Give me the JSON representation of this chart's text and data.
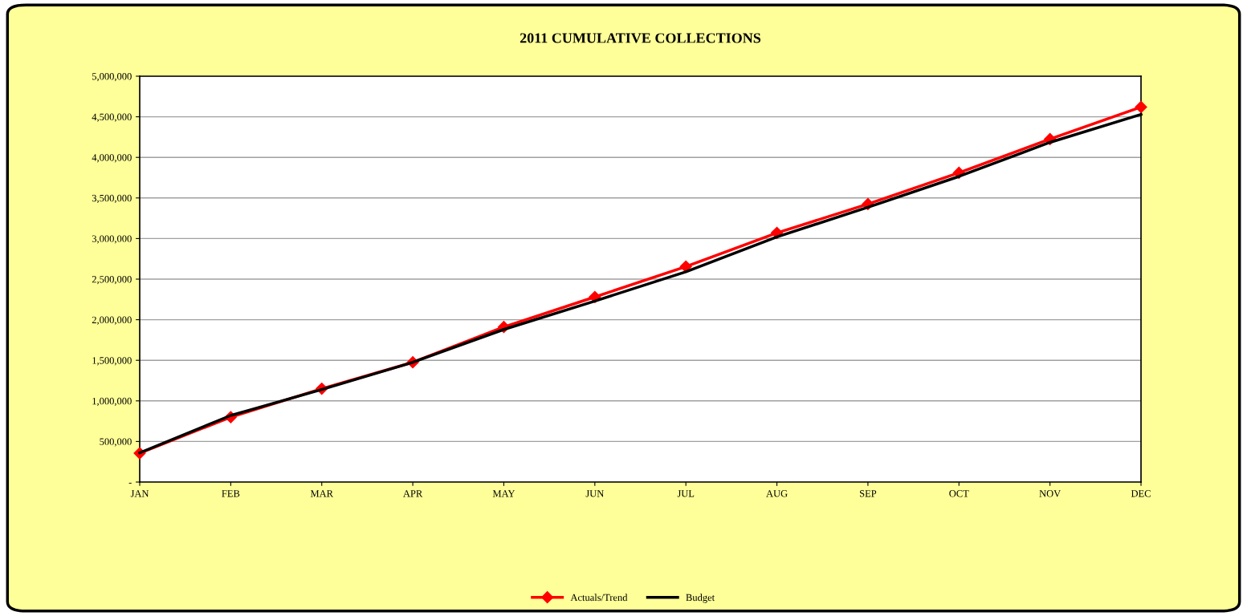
{
  "chart_data": {
    "type": "line",
    "title": "2011 CUMULATIVE COLLECTIONS",
    "categories": [
      "JAN",
      "FEB",
      "MAR",
      "APR",
      "MAY",
      "JUN",
      "JUL",
      "AUG",
      "SEP",
      "OCT",
      "NOV",
      "DEC"
    ],
    "series": [
      {
        "name": "Actuals/Trend",
        "color": "#ff0000",
        "marker": "diamond",
        "values": [
          355000,
          800000,
          1150000,
          1475000,
          1910000,
          2280000,
          2655000,
          3070000,
          3425000,
          3810000,
          4225000,
          4620000
        ]
      },
      {
        "name": "Budget",
        "color": "#000000",
        "marker": "none",
        "values": [
          360000,
          820000,
          1140000,
          1475000,
          1880000,
          2230000,
          2590000,
          3020000,
          3385000,
          3765000,
          4185000,
          4530000
        ]
      }
    ],
    "ylim": [
      0,
      5000000
    ],
    "yticks": [
      {
        "value": 0,
        "label": "-"
      },
      {
        "value": 500000,
        "label": "500,000"
      },
      {
        "value": 1000000,
        "label": "1,000,000"
      },
      {
        "value": 1500000,
        "label": "1,500,000"
      },
      {
        "value": 2000000,
        "label": "2,000,000"
      },
      {
        "value": 2500000,
        "label": "2,500,000"
      },
      {
        "value": 3000000,
        "label": "3,000,000"
      },
      {
        "value": 3500000,
        "label": "3,500,000"
      },
      {
        "value": 4000000,
        "label": "4,000,000"
      },
      {
        "value": 4500000,
        "label": "4,500,000"
      },
      {
        "value": 5000000,
        "label": "5,000,000"
      }
    ],
    "grid": "y",
    "legend": "bottom",
    "line_style": "solid"
  }
}
